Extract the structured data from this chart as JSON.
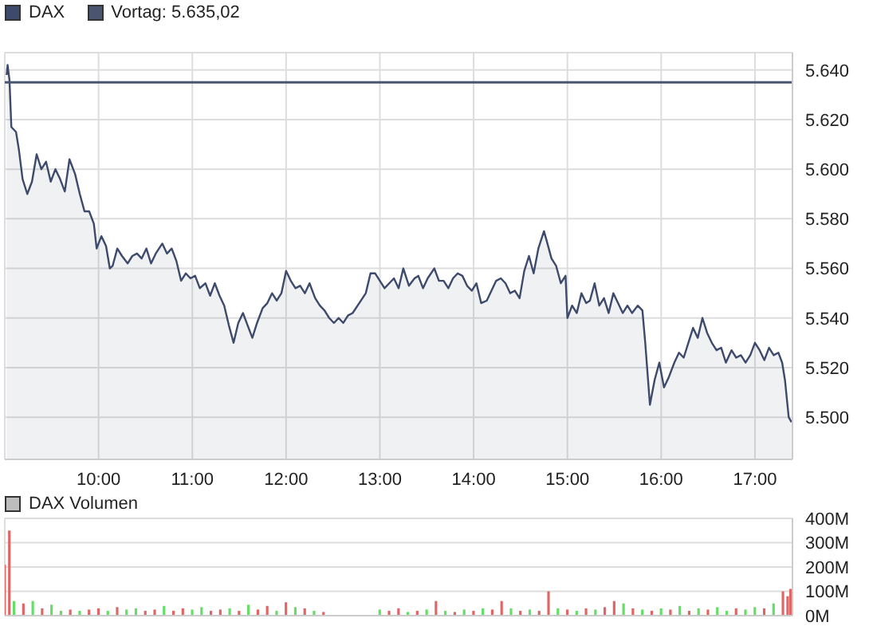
{
  "chart_data": [
    {
      "type": "area",
      "legend": "top left",
      "grid": true,
      "xlim": [
        9,
        17.4
      ],
      "ylim": [
        5483,
        5647
      ],
      "xticks": [
        {
          "value": 10,
          "label": "10:00"
        },
        {
          "value": 11,
          "label": "11:00"
        },
        {
          "value": 12,
          "label": "12:00"
        },
        {
          "value": 13,
          "label": "13:00"
        },
        {
          "value": 14,
          "label": "14:00"
        },
        {
          "value": 15,
          "label": "15:00"
        },
        {
          "value": 16,
          "label": "16:00"
        },
        {
          "value": 17,
          "label": "17:00"
        }
      ],
      "yticks": [
        {
          "value": 5500,
          "label": "5.500"
        },
        {
          "value": 5520,
          "label": "5.520"
        },
        {
          "value": 5540,
          "label": "5.540"
        },
        {
          "value": 5560,
          "label": "5.560"
        },
        {
          "value": 5580,
          "label": "5.580"
        },
        {
          "value": 5600,
          "label": "5.600"
        },
        {
          "value": 5620,
          "label": "5.620"
        },
        {
          "value": 5640,
          "label": "5.640"
        }
      ],
      "ref_lines": [
        {
          "axis": "y",
          "value": 5635.02,
          "label": "Vortag: 5.635,02",
          "color": "#4a5570"
        }
      ],
      "x": [
        9.02,
        9.03,
        9.05,
        9.07,
        9.12,
        9.15,
        9.19,
        9.24,
        9.29,
        9.34,
        9.39,
        9.44,
        9.49,
        9.54,
        9.59,
        9.64,
        9.69,
        9.75,
        9.8,
        9.85,
        9.9,
        9.95,
        9.98,
        10.03,
        10.08,
        10.12,
        10.15,
        10.2,
        10.25,
        10.31,
        10.36,
        10.41,
        10.46,
        10.51,
        10.56,
        10.61,
        10.68,
        10.73,
        10.78,
        10.83,
        10.88,
        10.93,
        10.98,
        11.03,
        11.08,
        11.14,
        11.19,
        11.24,
        11.29,
        11.34,
        11.39,
        11.44,
        11.49,
        11.54,
        11.59,
        11.64,
        11.69,
        11.75,
        11.8,
        11.85,
        11.9,
        11.95,
        12.0,
        12.05,
        12.1,
        12.15,
        12.2,
        12.25,
        12.31,
        12.36,
        12.41,
        12.46,
        12.51,
        12.56,
        12.61,
        12.66,
        12.71,
        12.78,
        12.85,
        12.9,
        12.95,
        13.0,
        13.05,
        13.1,
        13.15,
        13.2,
        13.25,
        13.31,
        13.37,
        13.41,
        13.46,
        13.51,
        13.58,
        13.63,
        13.68,
        13.73,
        13.78,
        13.83,
        13.88,
        13.93,
        13.98,
        14.03,
        14.08,
        14.14,
        14.19,
        14.24,
        14.29,
        14.34,
        14.39,
        14.44,
        14.49,
        14.54,
        14.59,
        14.64,
        14.69,
        14.75,
        14.78,
        14.83,
        14.88,
        14.93,
        14.98,
        15.0,
        15.05,
        15.1,
        15.15,
        15.2,
        15.24,
        15.29,
        15.34,
        15.39,
        15.44,
        15.49,
        15.54,
        15.59,
        15.64,
        15.69,
        15.75,
        15.8,
        15.83,
        15.88,
        15.93,
        15.98,
        16.03,
        16.08,
        16.14,
        16.19,
        16.24,
        16.29,
        16.34,
        16.39,
        16.44,
        16.49,
        16.54,
        16.59,
        16.64,
        16.69,
        16.75,
        16.8,
        16.85,
        16.9,
        16.95,
        17.0,
        17.05,
        17.1,
        17.15,
        17.2,
        17.25,
        17.29,
        17.32,
        17.36,
        17.39
      ],
      "series": [
        {
          "name": "DAX",
          "color": "#3d4a6b",
          "values": [
            5638,
            5642,
            5636,
            5617,
            5615,
            5608,
            5596,
            5590,
            5595,
            5606,
            5600,
            5603,
            5595,
            5600,
            5596,
            5591,
            5604,
            5598,
            5590,
            5583,
            5583,
            5578,
            5568,
            5573,
            5569,
            5560,
            5561,
            5568,
            5565,
            5562,
            5565,
            5566,
            5564,
            5568,
            5562,
            5566,
            5570,
            5566,
            5568,
            5563,
            5555,
            5558,
            5556,
            5557,
            5552,
            5554,
            5549,
            5554,
            5549,
            5545,
            5537,
            5530,
            5538,
            5542,
            5537,
            5532,
            5538,
            5544,
            5546,
            5550,
            5547,
            5550,
            5559,
            5555,
            5552,
            5553,
            5550,
            5554,
            5548,
            5545,
            5543,
            5540,
            5538,
            5540,
            5538,
            5541,
            5542,
            5546,
            5550,
            5558,
            5558,
            5555,
            5552,
            5554,
            5556,
            5552,
            5560,
            5553,
            5556,
            5557,
            5552,
            5556,
            5560,
            5555,
            5555,
            5552,
            5556,
            5558,
            5557,
            5553,
            5551,
            5554,
            5546,
            5547,
            5551,
            5555,
            5556,
            5554,
            5550,
            5551,
            5548,
            5559,
            5565,
            5558,
            5568,
            5575,
            5571,
            5564,
            5561,
            5554,
            5557,
            5540,
            5545,
            5542,
            5550,
            5546,
            5547,
            5554,
            5545,
            5548,
            5542,
            5550,
            5546,
            5542,
            5545,
            5542,
            5545,
            5543,
            5530,
            5505,
            5515,
            5522,
            5512,
            5516,
            5522,
            5526,
            5524,
            5530,
            5536,
            5532,
            5540,
            5534,
            5530,
            5527,
            5528,
            5522,
            5527,
            5524,
            5525,
            5522,
            5525,
            5530,
            5527,
            5523,
            5528,
            5525,
            5526,
            5522,
            5515,
            5500,
            5498
          ]
        }
      ]
    },
    {
      "type": "bar",
      "legend": "top left",
      "grid": true,
      "tick_labels": "y",
      "xlim": [
        9,
        17.4
      ],
      "ylim": [
        0,
        400
      ],
      "xticks": [
        {
          "value": 10,
          "label": null
        },
        {
          "value": 11,
          "label": null
        },
        {
          "value": 12,
          "label": null
        },
        {
          "value": 13,
          "label": null
        },
        {
          "value": 14,
          "label": null
        },
        {
          "value": 15,
          "label": null
        },
        {
          "value": 16,
          "label": null
        },
        {
          "value": 17,
          "label": null
        }
      ],
      "yticks": [
        {
          "value": 0,
          "label": "0M"
        },
        {
          "value": 100,
          "label": "100M"
        },
        {
          "value": 200,
          "label": "200M"
        },
        {
          "value": 300,
          "label": "300M"
        },
        {
          "value": 400,
          "label": "400M"
        }
      ],
      "x": [
        9.0,
        9.05,
        9.1,
        9.2,
        9.3,
        9.4,
        9.5,
        9.6,
        9.7,
        9.8,
        9.9,
        10.0,
        10.1,
        10.2,
        10.3,
        10.4,
        10.5,
        10.6,
        10.7,
        10.8,
        10.9,
        11.0,
        11.1,
        11.2,
        11.3,
        11.4,
        11.5,
        11.6,
        11.7,
        11.8,
        11.9,
        12.0,
        12.1,
        12.2,
        12.3,
        12.4,
        13.0,
        13.1,
        13.2,
        13.3,
        13.4,
        13.5,
        13.6,
        13.7,
        13.8,
        13.9,
        14.0,
        14.1,
        14.2,
        14.3,
        14.4,
        14.5,
        14.6,
        14.7,
        14.8,
        14.9,
        15.0,
        15.1,
        15.2,
        15.3,
        15.4,
        15.5,
        15.6,
        15.7,
        15.8,
        15.9,
        16.0,
        16.1,
        16.2,
        16.3,
        16.4,
        16.5,
        16.6,
        16.7,
        16.8,
        16.9,
        17.0,
        17.1,
        17.2,
        17.3,
        17.35,
        17.38
      ],
      "series": [
        {
          "name": "DAX Volumen",
          "color": "#bdbdbd",
          "values": [
            210,
            350,
            60,
            50,
            60,
            30,
            45,
            20,
            25,
            20,
            25,
            30,
            20,
            35,
            25,
            30,
            20,
            25,
            40,
            20,
            30,
            25,
            35,
            20,
            25,
            30,
            20,
            45,
            25,
            40,
            20,
            55,
            35,
            30,
            20,
            15,
            25,
            20,
            30,
            15,
            20,
            25,
            60,
            20,
            15,
            25,
            20,
            30,
            25,
            60,
            30,
            20,
            25,
            20,
            100,
            30,
            25,
            20,
            30,
            25,
            35,
            60,
            50,
            30,
            25,
            20,
            30,
            25,
            40,
            20,
            30,
            25,
            35,
            20,
            30,
            25,
            35,
            30,
            50,
            100,
            80,
            110
          ],
          "colors": [
            "#e06666",
            "#e06666",
            "#66dd66",
            "#e06666",
            "#66dd66",
            "#e06666",
            "#66dd66",
            "#66dd66",
            "#e06666",
            "#66dd66",
            "#e06666",
            "#e06666",
            "#66dd66",
            "#e06666",
            "#66dd66",
            "#66dd66",
            "#e06666",
            "#e06666",
            "#66dd66",
            "#e06666",
            "#e06666",
            "#66dd66",
            "#66dd66",
            "#e06666",
            "#e06666",
            "#66dd66",
            "#e06666",
            "#66dd66",
            "#e06666",
            "#e06666",
            "#66dd66",
            "#e06666",
            "#66dd66",
            "#e06666",
            "#66dd66",
            "#e06666",
            "#66dd66",
            "#e06666",
            "#e06666",
            "#66dd66",
            "#e06666",
            "#66dd66",
            "#e06666",
            "#66dd66",
            "#e06666",
            "#66dd66",
            "#e06666",
            "#66dd66",
            "#e06666",
            "#e06666",
            "#66dd66",
            "#e06666",
            "#66dd66",
            "#e06666",
            "#e06666",
            "#66dd66",
            "#e06666",
            "#66dd66",
            "#e06666",
            "#66dd66",
            "#e06666",
            "#e06666",
            "#66dd66",
            "#e06666",
            "#66dd66",
            "#e06666",
            "#66dd66",
            "#e06666",
            "#66dd66",
            "#e06666",
            "#66dd66",
            "#e06666",
            "#66dd66",
            "#66dd66",
            "#e06666",
            "#66dd66",
            "#66dd66",
            "#e06666",
            "#66dd66",
            "#e06666",
            "#e06666",
            "#e06666"
          ]
        }
      ]
    }
  ]
}
